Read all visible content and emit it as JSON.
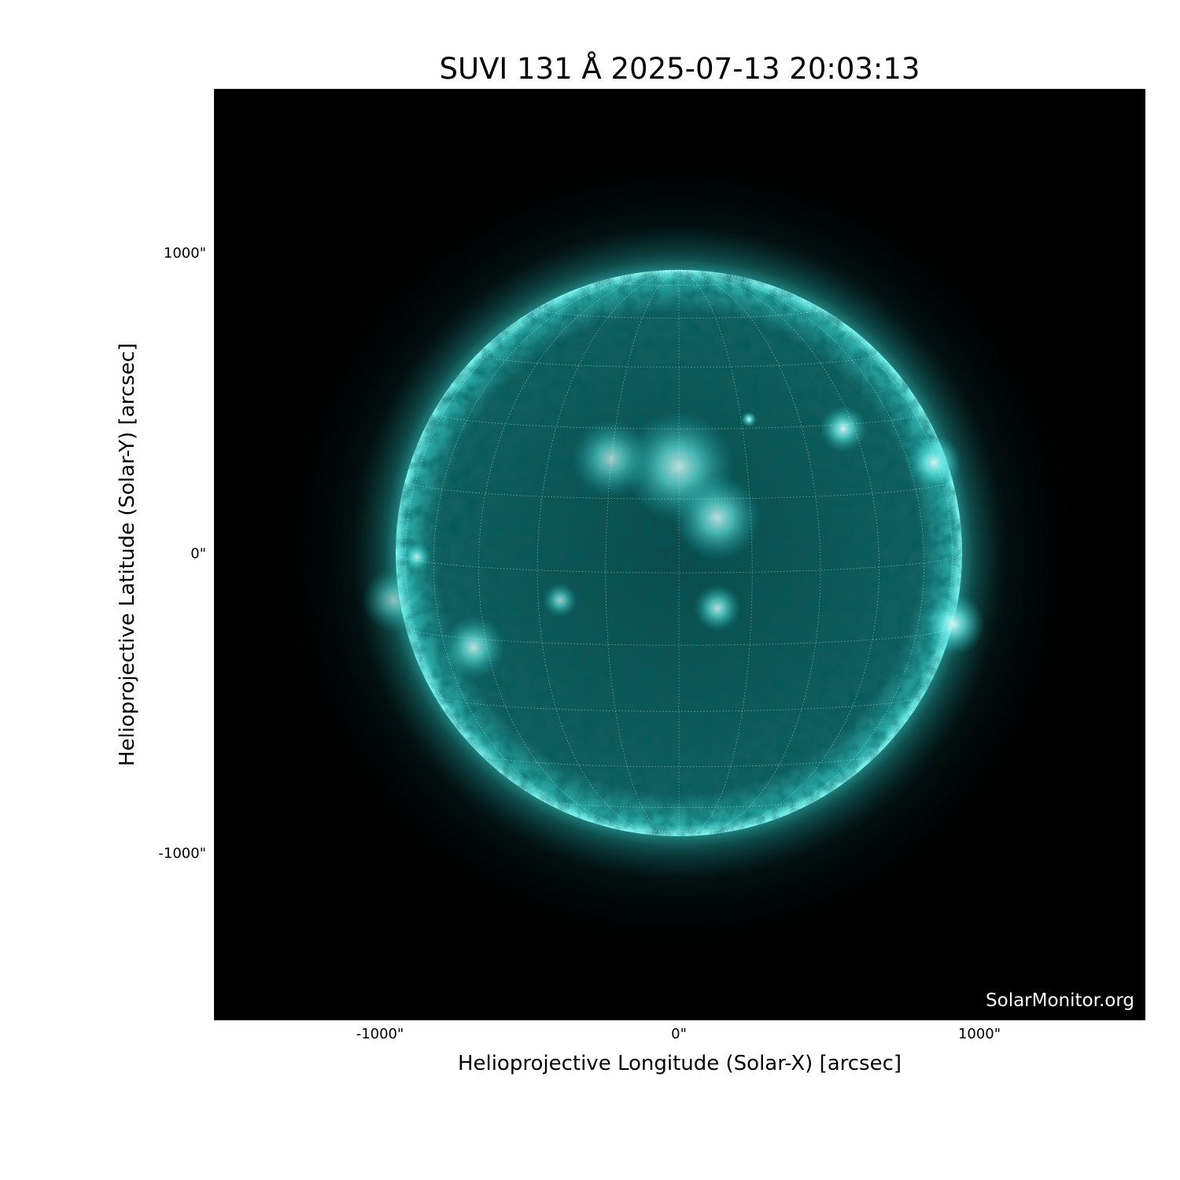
{
  "title": "SUVI 131 Å 2025-07-13 20:03:13",
  "axes": {
    "xlabel": "Helioprojective Longitude (Solar-X) [arcsec]",
    "ylabel": "Helioprojective Latitude (Solar-Y) [arcsec]",
    "xticks": [
      "-1000\"",
      "0\"",
      "1000\""
    ],
    "yticks": [
      "1000\"",
      "0\"",
      "-1000\""
    ],
    "xtick_values": [
      -1000,
      0,
      1000
    ],
    "ytick_values": [
      1000,
      0,
      -1000
    ],
    "xlim": [
      -1550,
      1550
    ],
    "ylim": [
      -1550,
      1550
    ]
  },
  "image": {
    "colormap": "cyan (SUVI 131)",
    "solar_radius_arcsec": 944,
    "grid": "heliographic lat/lon, dotted white, 15° spacing"
  },
  "watermark": "SolarMonitor.org",
  "colors": {
    "disk": "#0e5a5a",
    "limb": "#5ff5f0",
    "background": "#000000"
  }
}
